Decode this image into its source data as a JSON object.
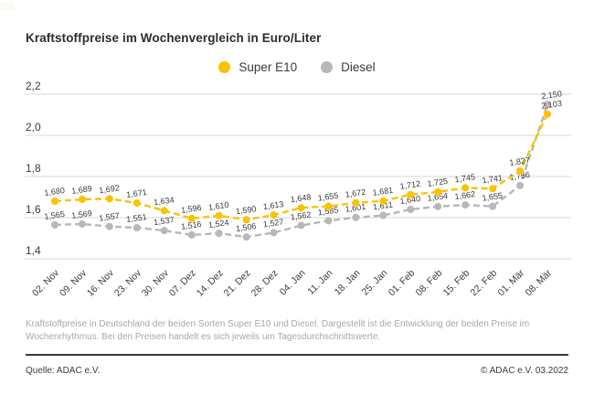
{
  "title": "Kraftstoffpreise im Wochenvergleich in Euro/Liter",
  "legend": [
    {
      "label": "Super E10",
      "color": "#fcc200"
    },
    {
      "label": "Diesel",
      "color": "#b8b8b8"
    }
  ],
  "chart_data": {
    "type": "line",
    "title": "Kraftstoffpreise im Wochenvergleich in Euro/Liter",
    "unit": "Euro/Liter",
    "categories": [
      "02. Nov",
      "09. Nov",
      "16. Nov",
      "23. Nov",
      "30. Nov",
      "07. Dez",
      "14. Dez",
      "21. Dez",
      "28. Dez",
      "04. Jan",
      "11. Jan",
      "18. Jan",
      "25. Jan",
      "01. Feb",
      "08. Feb",
      "15. Feb",
      "22. Feb",
      "01. Mär",
      "08. Mär"
    ],
    "series": [
      {
        "name": "Super E10",
        "color": "#fcc200",
        "values": [
          1.68,
          1.689,
          1.692,
          1.671,
          1.634,
          1.596,
          1.61,
          1.59,
          1.613,
          1.648,
          1.655,
          1.672,
          1.681,
          1.712,
          1.725,
          1.745,
          1.741,
          1.827,
          2.103
        ]
      },
      {
        "name": "Diesel",
        "color": "#b8b8b8",
        "values": [
          1.565,
          1.569,
          1.557,
          1.551,
          1.537,
          1.516,
          1.524,
          1.506,
          1.527,
          1.562,
          1.585,
          1.601,
          1.611,
          1.64,
          1.654,
          1.662,
          1.655,
          1.756,
          2.15
        ]
      }
    ],
    "ylim": [
      1.4,
      2.2
    ],
    "y_ticks": [
      2.2,
      2.0,
      1.8,
      1.6,
      1.4
    ],
    "decimal_separator": ",",
    "grid": true,
    "value_labels": true,
    "legend_position": "top",
    "colors": {
      "grid": "#d8d8d8",
      "tick_text": "#3c3c3c",
      "value_text": "#3a3a3a"
    }
  },
  "footer": {
    "description": "Kraftstoffpreise in Deutschland der beiden Sorten Super E10 und Diesel. Dargestellt ist die Entwicklung der beiden Preise im Wochenrhythmus. Bei den Preisen handelt es sich jeweils um Tagesdurchschnittswerte.",
    "source": "Quelle: ADAC e.V.",
    "copyright": "© ADAC e.V. 03.2022"
  }
}
